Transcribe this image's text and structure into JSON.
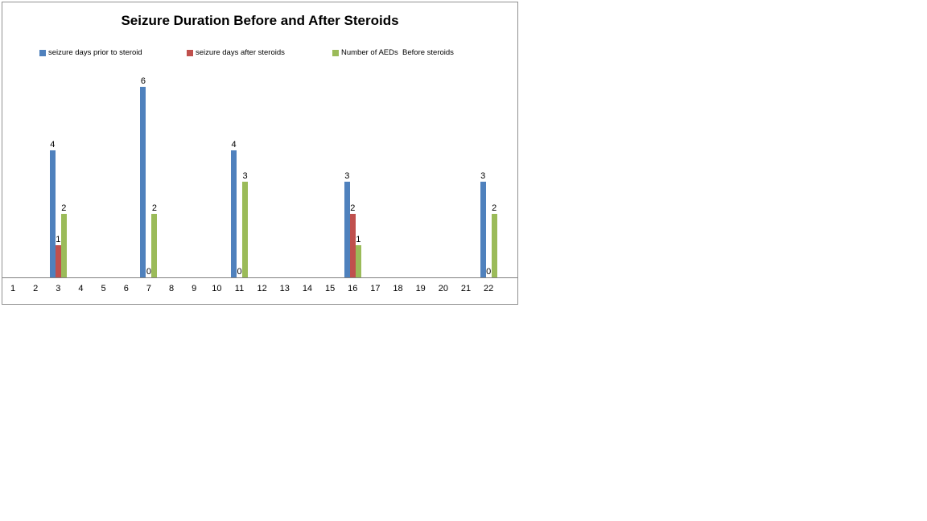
{
  "title": "Seizure Duration Before and After Steroids",
  "colors": {
    "series_blue": "#4F81BD",
    "series_red": "#C0504D",
    "series_green": "#9BBB59",
    "chart_border": "#919191",
    "axis_line": "#808080"
  },
  "legend": {
    "items": [
      {
        "label": "seizure days prior to steroid",
        "color": "#4F81BD"
      },
      {
        "label": "seizure days after steroids",
        "color": "#C0504D"
      },
      {
        "label": "Number of AEDs  Before steroids",
        "color": "#9BBB59"
      }
    ]
  },
  "chart_data": {
    "type": "bar",
    "title": "Seizure Duration Before and After Steroids",
    "categories": [
      1,
      2,
      3,
      4,
      5,
      6,
      7,
      8,
      9,
      10,
      11,
      12,
      13,
      14,
      15,
      16,
      17,
      18,
      19,
      20,
      21,
      22
    ],
    "series": [
      {
        "name": "seizure days prior to steroid",
        "color": "#4F81BD",
        "values": [
          null,
          null,
          4,
          null,
          null,
          null,
          6,
          null,
          null,
          null,
          4,
          null,
          null,
          null,
          null,
          3,
          null,
          null,
          null,
          null,
          null,
          3
        ]
      },
      {
        "name": "seizure days after steroids",
        "color": "#C0504D",
        "values": [
          null,
          null,
          1,
          null,
          null,
          null,
          0,
          null,
          null,
          null,
          0,
          null,
          null,
          null,
          null,
          2,
          null,
          null,
          null,
          null,
          null,
          0
        ]
      },
      {
        "name": "Number of AEDs  Before steroids",
        "color": "#9BBB59",
        "values": [
          null,
          null,
          2,
          null,
          null,
          null,
          2,
          null,
          null,
          null,
          3,
          null,
          null,
          null,
          null,
          1,
          null,
          null,
          null,
          null,
          null,
          2
        ]
      }
    ],
    "data_labels": true,
    "xlabel": "",
    "ylabel": "",
    "ylim": [
      0,
      7
    ],
    "gridlines": false,
    "y_axis_visible": false,
    "legend_position": "top-row"
  }
}
